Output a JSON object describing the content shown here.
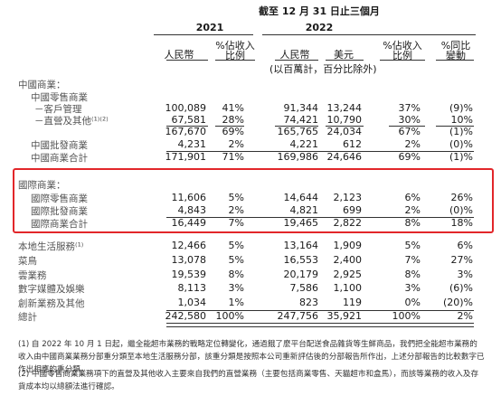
{
  "header": {
    "period": "截至 12 月 31 日止三個月",
    "year_2021": "2021",
    "year_2022": "2022",
    "col_rmb_2021": "人民幣",
    "col_pct_2021": [
      "%佔收入",
      "比例"
    ],
    "col_rmb_2022": "人民幣",
    "col_usd_2022": "美元",
    "col_pct_2022": [
      "%佔收入",
      "比例"
    ],
    "col_yoy": [
      "%同比",
      "變動"
    ],
    "unit_note": "(以百萬計，百分比除外)"
  },
  "rows": [
    {
      "label": "中國商業：",
      "indent": 0,
      "values": [
        "",
        "",
        "",
        "",
        "",
        ""
      ]
    },
    {
      "label": "中國零售商業",
      "indent": 1,
      "values": [
        "",
        "",
        "",
        "",
        "",
        ""
      ]
    },
    {
      "label": "－客戶管理",
      "indent": 2,
      "values": [
        "100,089",
        "41%",
        "91,344",
        "13,244",
        "37%",
        "(9)%"
      ]
    },
    {
      "label": "－直營及其他⁽¹⁾⁽²⁾",
      "indent": 2,
      "values": [
        "67,581",
        "28%",
        "74,421",
        "10,790",
        "30%",
        "10%"
      ]
    },
    {
      "label": "",
      "indent": 1,
      "values": [
        "167,670",
        "69%",
        "165,765",
        "24,034",
        "67%",
        "(1)%"
      ]
    },
    {
      "label": "中國批發商業",
      "indent": 1,
      "values": [
        "4,231",
        "2%",
        "4,221",
        "612",
        "2%",
        "(0)%"
      ]
    },
    {
      "label": "中國商業合計",
      "indent": 1,
      "values": [
        "171,901",
        "71%",
        "169,986",
        "24,646",
        "69%",
        "(1)%"
      ]
    },
    {
      "label": "國際商業：",
      "indent": 0,
      "values": [
        "",
        "",
        "",
        "",
        "",
        ""
      ]
    },
    {
      "label": "國際零售商業",
      "indent": 1,
      "values": [
        "11,606",
        "5%",
        "14,644",
        "2,123",
        "6%",
        "26%"
      ]
    },
    {
      "label": "國際批發商業",
      "indent": 1,
      "values": [
        "4,843",
        "2%",
        "4,821",
        "699",
        "2%",
        "(0)%"
      ]
    },
    {
      "label": "國際商業合計",
      "indent": 1,
      "values": [
        "16,449",
        "7%",
        "19,465",
        "2,822",
        "8%",
        "18%"
      ]
    },
    {
      "label": "本地生活服務⁽¹⁾",
      "indent": 0,
      "values": [
        "12,466",
        "5%",
        "13,164",
        "1,909",
        "5%",
        "6%"
      ]
    },
    {
      "label": "菜鳥",
      "indent": 0,
      "values": [
        "13,078",
        "5%",
        "16,553",
        "2,400",
        "7%",
        "27%"
      ]
    },
    {
      "label": "雲業務",
      "indent": 0,
      "values": [
        "19,539",
        "8%",
        "20,179",
        "2,925",
        "8%",
        "3%"
      ]
    },
    {
      "label": "數字媒體及娛樂",
      "indent": 0,
      "values": [
        "8,113",
        "3%",
        "7,586",
        "1,100",
        "3%",
        "(6)%"
      ]
    },
    {
      "label": "創新業務及其他",
      "indent": 0,
      "values": [
        "1,034",
        "1%",
        "823",
        "119",
        "0%",
        "(20)%"
      ]
    },
    {
      "label": "總計",
      "indent": 0,
      "values": [
        "242,580",
        "100%",
        "247,756",
        "35,921",
        "100%",
        "2%"
      ]
    }
  ],
  "footnotes": [
    "(1) 自 2022 年 10 月 1 日起，繼全能超市業務的戰略定位轉變化，通過餓了麼平台配送食品雜貨等生鮮商品，我們把全能超市業務的收入由中國商業業務分部重分類至本地生活服務分部，該重分類是按照本公司重新評估後的分部報告所作出，上述分部報告的比較數字已作出相應的重分類。",
    "(2) 中國零售商業業務項下的直營及其他收入主要來自我們的直營業務（主要包括商業零售、天貓超市和盒馬），而該等業務的收入及存貨成本均以總額法進行確認。"
  ]
}
